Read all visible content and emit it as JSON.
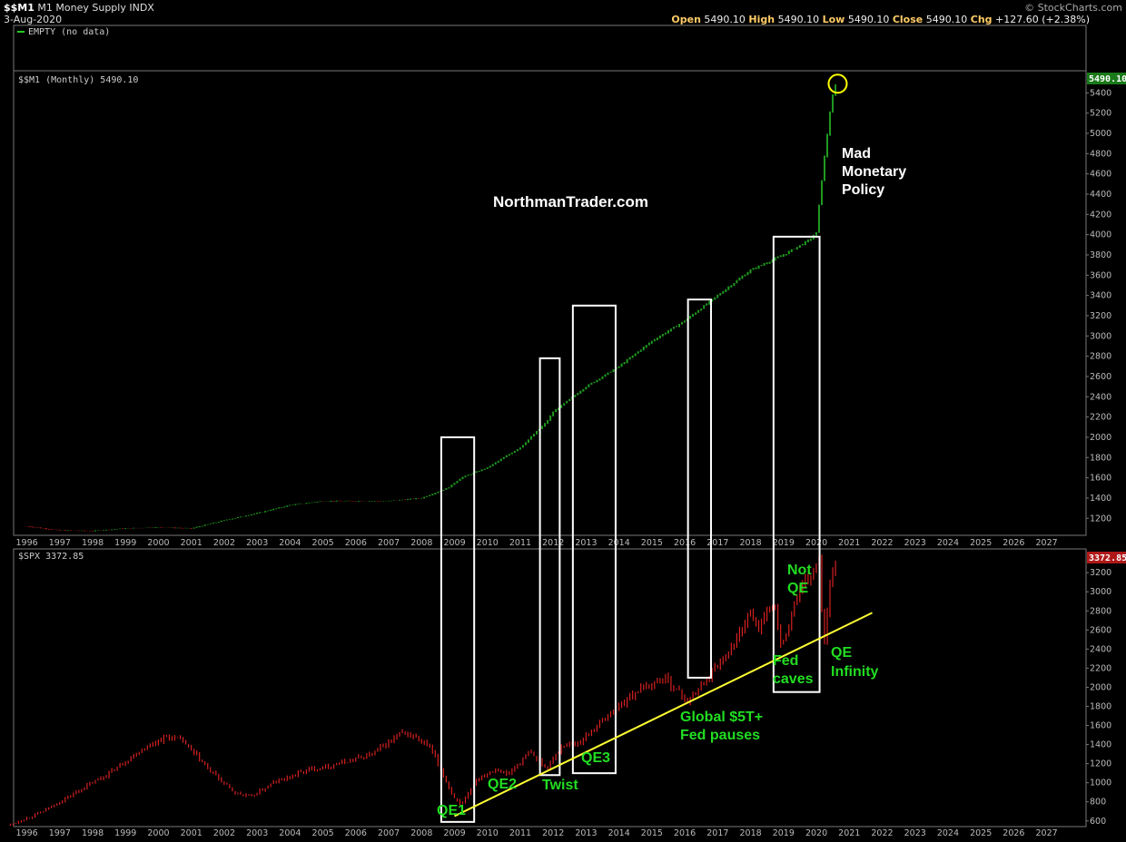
{
  "header": {
    "symbol": "$$M1",
    "name": "M1 Money Supply INDX",
    "date": "3-Aug-2020",
    "brand": "© StockCharts.com",
    "ohlc": {
      "open_label": "Open",
      "open": "5490.10",
      "high_label": "High",
      "high": "5490.10",
      "low_label": "Low",
      "low": "5490.10",
      "close_label": "Close",
      "close": "5490.10",
      "chg_label": "Chg",
      "chg": "+127.60 (+2.38%)"
    }
  },
  "panels": {
    "empty_label": "EMPTY (no data)",
    "m1_label": "$$M1 (Monthly) 5490.10",
    "m1_last": "5490.10",
    "spx_label": "$SPX 3372.85",
    "spx_last": "3372.85"
  },
  "watermark": "NorthmanTrader.com",
  "colors": {
    "up": "#1f9a1f",
    "down": "#d62020",
    "trend": "#ffff33",
    "annotation": "#22dd22",
    "highlight": "#ffff00"
  },
  "chart_data": [
    {
      "type": "line",
      "title": "$$M1 (Monthly) 5490.10",
      "x": [
        1996,
        1997,
        1998,
        1999,
        2000,
        2001,
        2002,
        2003,
        2004,
        2005,
        2006,
        2007,
        2008,
        2008.8,
        2009.2,
        2010,
        2011,
        2011.8,
        2012,
        2013,
        2014,
        2015,
        2016,
        2017,
        2018,
        2019,
        2019.8,
        2020.0,
        2020.15,
        2020.3,
        2020.45,
        2020.6
      ],
      "series": [
        {
          "values": [
            1120,
            1080,
            1075,
            1100,
            1110,
            1100,
            1180,
            1250,
            1330,
            1370,
            1370,
            1370,
            1400,
            1500,
            1600,
            1700,
            1900,
            2150,
            2250,
            2500,
            2700,
            2950,
            3150,
            3400,
            3650,
            3800,
            3950,
            4020,
            4500,
            4900,
            5300,
            5490.1
          ]
        }
      ],
      "ylim": [
        1050,
        5600
      ],
      "yticks": [
        1200,
        1400,
        1600,
        1800,
        2000,
        2200,
        2400,
        2600,
        2800,
        3000,
        3200,
        3400,
        3600,
        3800,
        4000,
        4200,
        4400,
        4600,
        4800,
        5000,
        5200,
        5400
      ]
    },
    {
      "type": "line",
      "title": "$SPX 3372.85",
      "x": [
        1995.5,
        1996.5,
        1997.5,
        1998.5,
        1999.5,
        2000.2,
        2000.7,
        2001.5,
        2002.3,
        2002.8,
        2003.5,
        2004.5,
        2005.5,
        2006.5,
        2007.4,
        2007.8,
        2008.3,
        2008.9,
        2009.2,
        2009.7,
        2010.3,
        2010.6,
        2011.3,
        2011.8,
        2012.3,
        2012.8,
        2013.5,
        2014.5,
        2015.4,
        2016.1,
        2016.8,
        2017.5,
        2018.0,
        2018.2,
        2018.7,
        2018.95,
        2019.4,
        2019.9,
        2020.1,
        2020.22,
        2020.4,
        2020.6
      ],
      "series": [
        {
          "values": [
            560,
            700,
            900,
            1100,
            1350,
            1480,
            1450,
            1150,
            900,
            850,
            1000,
            1130,
            1200,
            1300,
            1520,
            1480,
            1350,
            900,
            750,
            1050,
            1150,
            1080,
            1320,
            1150,
            1400,
            1420,
            1650,
            1950,
            2100,
            1850,
            2150,
            2450,
            2800,
            2600,
            2900,
            2400,
            2950,
            3200,
            3350,
            2300,
            3100,
            3372.85
          ]
        }
      ],
      "ylim": [
        560,
        3420
      ],
      "yticks": [
        600,
        800,
        1000,
        1200,
        1400,
        1600,
        1800,
        2000,
        2200,
        2400,
        2600,
        2800,
        3000,
        3200
      ]
    }
  ],
  "xaxis_years": [
    "1996",
    "1997",
    "1998",
    "1999",
    "2000",
    "2001",
    "2002",
    "2003",
    "2004",
    "2005",
    "2006",
    "2007",
    "2008",
    "2009",
    "2010",
    "2011",
    "2012",
    "2013",
    "2014",
    "2015",
    "2016",
    "2017",
    "2018",
    "2019",
    "2020",
    "2021",
    "2022",
    "2023",
    "2024",
    "2025",
    "2026",
    "2027"
  ],
  "annotations": {
    "mad_monetary_policy": [
      "Mad",
      "Monetary",
      "Policy"
    ],
    "qe1": "QE1",
    "qe2": "QE2",
    "twist": "Twist",
    "qe3": "QE3",
    "global_pauses": [
      "Global $5T+",
      "Fed pauses"
    ],
    "fed_caves": [
      "Fed",
      "caves"
    ],
    "not_qe": [
      "Not",
      "QE"
    ],
    "qe_infinity": [
      "QE",
      "Infinity"
    ]
  },
  "highlight_boxes": [
    {
      "name": "QE1",
      "from": 2008.6,
      "to": 2009.6
    },
    {
      "name": "Twist",
      "from": 2011.6,
      "to": 2012.2
    },
    {
      "name": "QE3",
      "from": 2012.6,
      "to": 2013.9
    },
    {
      "name": "Global $5T+ Fed pauses",
      "from": 2016.1,
      "to": 2016.8
    },
    {
      "name": "Not QE",
      "from": 2018.7,
      "to": 2020.1
    }
  ]
}
